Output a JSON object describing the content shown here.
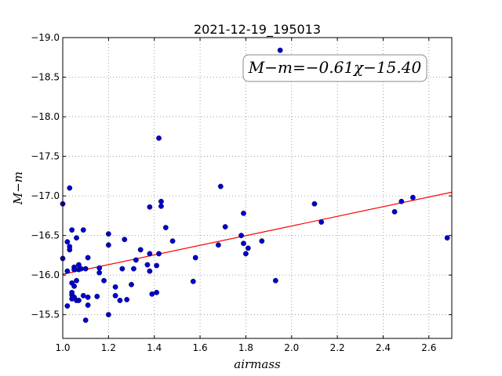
{
  "chart_data": {
    "type": "scatter",
    "title": "2021-12-19_195013",
    "xlabel": "airmass",
    "ylabel": "M−m",
    "xlim": [
      1.0,
      2.7
    ],
    "ylim": [
      -19.0,
      -15.2
    ],
    "y_inverted": true,
    "grid": true,
    "xticks": [
      "1.0",
      "1.2",
      "1.4",
      "1.6",
      "1.8",
      "2.0",
      "2.2",
      "2.4",
      "2.6"
    ],
    "yticks": [
      "−15.5",
      "−16.0",
      "−16.5",
      "−17.0",
      "−17.5",
      "−18.0",
      "−18.5",
      "−19.0"
    ],
    "annotation": "M−m=−0.61χ−15.40",
    "fit": {
      "slope": -0.61,
      "intercept": -15.4,
      "color": "#ff0000"
    },
    "point_color": "#0000cc",
    "points": [
      [
        1.0,
        -16.21
      ],
      [
        1.0,
        -16.9
      ],
      [
        1.02,
        -15.61
      ],
      [
        1.02,
        -16.05
      ],
      [
        1.02,
        -16.42
      ],
      [
        1.03,
        -16.36
      ],
      [
        1.03,
        -16.32
      ],
      [
        1.03,
        -17.1
      ],
      [
        1.04,
        -15.75
      ],
      [
        1.04,
        -15.7
      ],
      [
        1.04,
        -15.78
      ],
      [
        1.04,
        -15.9
      ],
      [
        1.04,
        -16.57
      ],
      [
        1.05,
        -15.72
      ],
      [
        1.05,
        -15.86
      ],
      [
        1.05,
        -16.1
      ],
      [
        1.05,
        -16.07
      ],
      [
        1.06,
        -15.68
      ],
      [
        1.06,
        -15.93
      ],
      [
        1.06,
        -16.47
      ],
      [
        1.07,
        -16.07
      ],
      [
        1.07,
        -15.68
      ],
      [
        1.07,
        -16.13
      ],
      [
        1.08,
        -16.08
      ],
      [
        1.09,
        -16.57
      ],
      [
        1.09,
        -15.74
      ],
      [
        1.1,
        -16.08
      ],
      [
        1.1,
        -15.43
      ],
      [
        1.11,
        -15.62
      ],
      [
        1.11,
        -15.72
      ],
      [
        1.11,
        -16.22
      ],
      [
        1.15,
        -15.73
      ],
      [
        1.16,
        -16.03
      ],
      [
        1.16,
        -16.09
      ],
      [
        1.18,
        -15.93
      ],
      [
        1.2,
        -15.5
      ],
      [
        1.2,
        -16.38
      ],
      [
        1.2,
        -16.52
      ],
      [
        1.23,
        -15.74
      ],
      [
        1.23,
        -15.85
      ],
      [
        1.25,
        -15.68
      ],
      [
        1.26,
        -16.08
      ],
      [
        1.27,
        -16.45
      ],
      [
        1.28,
        -15.69
      ],
      [
        1.3,
        -15.88
      ],
      [
        1.31,
        -16.08
      ],
      [
        1.32,
        -16.19
      ],
      [
        1.34,
        -16.32
      ],
      [
        1.37,
        -16.13
      ],
      [
        1.38,
        -16.05
      ],
      [
        1.38,
        -16.27
      ],
      [
        1.38,
        -16.86
      ],
      [
        1.39,
        -15.76
      ],
      [
        1.41,
        -15.78
      ],
      [
        1.41,
        -16.12
      ],
      [
        1.42,
        -16.27
      ],
      [
        1.42,
        -17.73
      ],
      [
        1.43,
        -16.87
      ],
      [
        1.43,
        -16.93
      ],
      [
        1.45,
        -16.6
      ],
      [
        1.48,
        -16.43
      ],
      [
        1.57,
        -15.92
      ],
      [
        1.58,
        -16.22
      ],
      [
        1.68,
        -16.38
      ],
      [
        1.69,
        -17.12
      ],
      [
        1.71,
        -16.61
      ],
      [
        1.78,
        -16.5
      ],
      [
        1.79,
        -16.4
      ],
      [
        1.79,
        -16.78
      ],
      [
        1.8,
        -16.27
      ],
      [
        1.81,
        -16.34
      ],
      [
        1.87,
        -16.43
      ],
      [
        1.93,
        -15.93
      ],
      [
        1.95,
        -18.84
      ],
      [
        2.1,
        -16.9
      ],
      [
        2.13,
        -16.67
      ],
      [
        2.45,
        -16.8
      ],
      [
        2.48,
        -16.93
      ],
      [
        2.53,
        -16.98
      ],
      [
        2.68,
        -16.47
      ]
    ]
  }
}
